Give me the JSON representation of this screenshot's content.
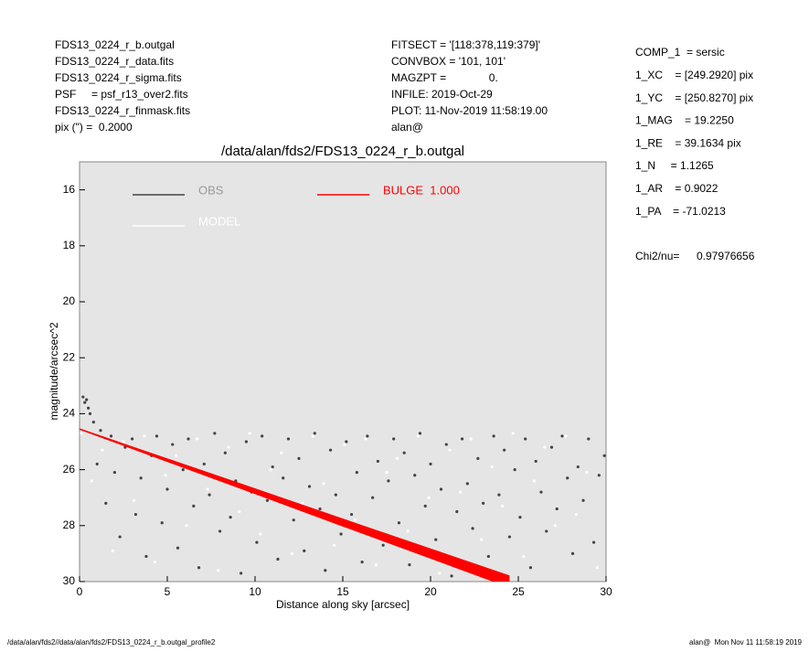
{
  "info_left": [
    "FDS13_0224_r_b.outgal",
    "FDS13_0224_r_data.fits",
    "FDS13_0224_r_sigma.fits",
    "PSF     = psf_r13_over2.fits",
    "FDS13_0224_r_finmask.fits",
    "pix (\") =  0.2000"
  ],
  "info_center": [
    "FITSECT = '[118:378,119:379]'",
    "CONVBOX = '101, 101'",
    "MAGZPT =              0.",
    "INFILE: 2019-Oct-29",
    "PLOT: 11-Nov-2019 11:58:19.00",
    "alan@"
  ],
  "params": [
    "COMP_1  = sersic",
    "1_XC    = [249.2920] pix",
    "1_YC    = [250.8270] pix",
    "1_MAG    = 19.2250",
    "1_RE    = 39.1634 pix",
    "1_N     = 1.1265",
    "1_AR    = 0.9022",
    "1_PA    = -71.0213"
  ],
  "chi2": {
    "label": "Chi2/nu=",
    "value": "0.97976656"
  },
  "footer_left": "/data/alan/fds2//data/alan/fds2/FDS13_0224_r_b.outgal_profile2",
  "footer_right": "alan@  Mon Nov 11 11:58:19 2019",
  "chart_data": {
    "type": "scatter",
    "title": "/data/alan/fds2/FDS13_0224_r_b.outgal",
    "x_label": "Distance along sky [arcsec]",
    "y_label": "magnitude/arcsec^2",
    "xlim": [
      0,
      30
    ],
    "xticks": [
      0,
      5,
      10,
      15,
      20,
      25,
      30
    ],
    "ylim": [
      30,
      15
    ],
    "yticks": [
      16,
      18,
      20,
      22,
      24,
      26,
      28,
      30
    ],
    "series": [
      {
        "name": "OBS",
        "color": "#444444",
        "x": [
          0.2,
          0.3,
          0.4,
          0.5,
          0.6,
          0.8,
          1.0,
          1.2,
          1.5,
          1.8,
          2.0,
          2.3,
          2.6,
          3.0,
          3.2,
          3.5,
          3.8,
          4.1,
          4.4,
          4.7,
          5.0,
          5.3,
          5.6,
          5.9,
          6.2,
          6.5,
          6.8,
          7.1,
          7.4,
          7.7,
          8.0,
          8.3,
          8.6,
          8.9,
          9.2,
          9.5,
          9.8,
          10.1,
          10.4,
          10.7,
          11.0,
          11.3,
          11.6,
          11.9,
          12.2,
          12.5,
          12.8,
          13.1,
          13.4,
          13.7,
          14.0,
          14.3,
          14.6,
          14.9,
          15.2,
          15.5,
          15.8,
          16.1,
          16.4,
          16.7,
          17.0,
          17.3,
          17.6,
          17.9,
          18.2,
          18.5,
          18.8,
          19.1,
          19.4,
          19.7,
          20.0,
          20.3,
          20.6,
          20.9,
          21.2,
          21.5,
          21.8,
          22.1,
          22.4,
          22.7,
          23.0,
          23.3,
          23.6,
          23.9,
          24.2,
          24.5,
          24.8,
          25.1,
          25.4,
          25.7,
          26.0,
          26.3,
          26.6,
          26.9,
          27.2,
          27.5,
          27.8,
          28.1,
          28.4,
          28.7,
          29.0,
          29.3,
          29.6,
          29.9
        ],
        "values": [
          23.4,
          23.6,
          23.5,
          23.8,
          24.0,
          24.3,
          25.8,
          24.6,
          27.2,
          24.8,
          26.1,
          28.4,
          25.2,
          24.9,
          27.6,
          26.3,
          29.1,
          25.5,
          24.8,
          27.9,
          26.7,
          25.1,
          28.8,
          26.0,
          24.9,
          27.3,
          29.5,
          25.8,
          26.9,
          24.7,
          28.2,
          25.4,
          27.7,
          26.4,
          29.7,
          25.0,
          26.8,
          28.6,
          24.8,
          27.1,
          25.9,
          29.2,
          26.3,
          24.9,
          27.8,
          25.6,
          28.9,
          26.6,
          24.7,
          27.4,
          29.6,
          25.3,
          26.9,
          28.3,
          25.0,
          27.6,
          26.1,
          29.3,
          24.8,
          27.0,
          25.7,
          28.7,
          26.4,
          24.9,
          27.9,
          25.4,
          29.4,
          26.2,
          24.7,
          27.3,
          25.8,
          28.5,
          26.7,
          25.1,
          29.8,
          27.5,
          24.9,
          26.5,
          28.1,
          25.6,
          27.2,
          29.1,
          24.8,
          26.9,
          25.3,
          28.4,
          26.0,
          27.7,
          24.9,
          29.5,
          25.7,
          26.8,
          28.2,
          25.2,
          27.4,
          24.8,
          26.3,
          29.0,
          25.9,
          27.1,
          24.9,
          28.6,
          26.2,
          25.5
        ]
      },
      {
        "name": "MODEL",
        "color": "#ffffff",
        "x": [
          0.1,
          0.7,
          1.3,
          1.9,
          2.5,
          3.1,
          3.7,
          4.3,
          4.9,
          5.5,
          6.1,
          6.7,
          7.3,
          7.9,
          8.5,
          9.1,
          9.7,
          10.3,
          10.9,
          11.5,
          12.1,
          12.7,
          13.3,
          13.9,
          14.5,
          15.1,
          15.7,
          16.3,
          16.9,
          17.5,
          18.1,
          18.7,
          19.3,
          19.9,
          20.5,
          21.1,
          21.7,
          22.3,
          22.9,
          23.5,
          24.1,
          24.7,
          25.3,
          25.9,
          26.5,
          27.1,
          27.7,
          28.3,
          28.9,
          29.5
        ],
        "values": [
          24.7,
          26.4,
          25.3,
          28.9,
          25.0,
          27.1,
          24.8,
          29.3,
          26.2,
          25.5,
          28.0,
          24.9,
          26.7,
          29.6,
          25.2,
          27.5,
          24.7,
          28.3,
          26.0,
          25.4,
          29.0,
          27.2,
          24.8,
          26.5,
          28.7,
          25.1,
          27.8,
          24.9,
          29.4,
          26.1,
          25.6,
          28.2,
          24.8,
          27.0,
          29.7,
          25.3,
          26.8,
          24.9,
          28.5,
          25.9,
          27.3,
          24.7,
          29.1,
          26.4,
          25.2,
          28.0,
          24.8,
          27.6,
          26.1,
          29.5
        ]
      },
      {
        "name": "BULGE  1.000",
        "color": "#ff0000",
        "line": true,
        "x": [
          0,
          5,
          10,
          15,
          20,
          24.5
        ],
        "values": [
          24.55,
          25.66,
          26.77,
          27.89,
          29.0,
          30.0
        ]
      }
    ]
  }
}
